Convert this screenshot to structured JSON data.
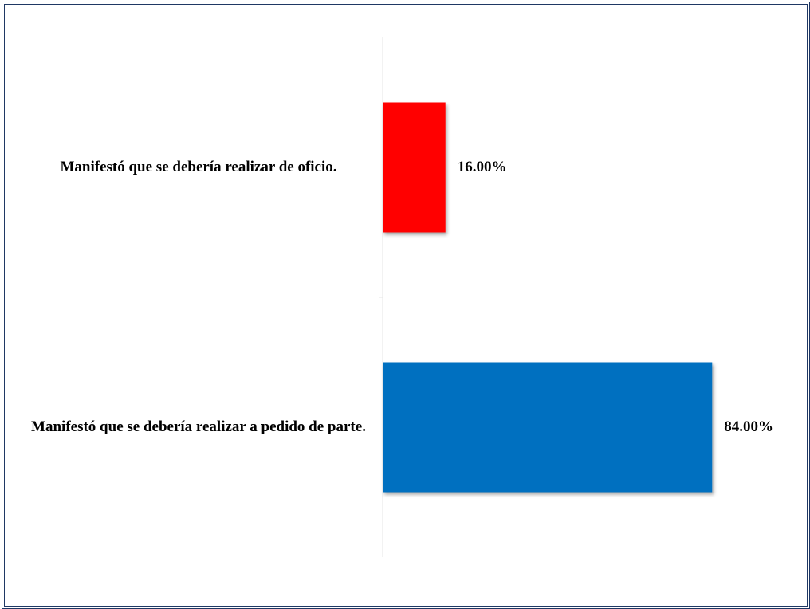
{
  "chart_data": {
    "type": "bar",
    "orientation": "horizontal",
    "categories": [
      "Manifestó que se debería realizar de oficio.",
      "Manifestó que se debería realizar a pedido de parte."
    ],
    "values": [
      16,
      84
    ],
    "value_labels": [
      "16.00%",
      "84.00%"
    ],
    "colors": [
      "#ff0000",
      "#0070c0"
    ]
  }
}
